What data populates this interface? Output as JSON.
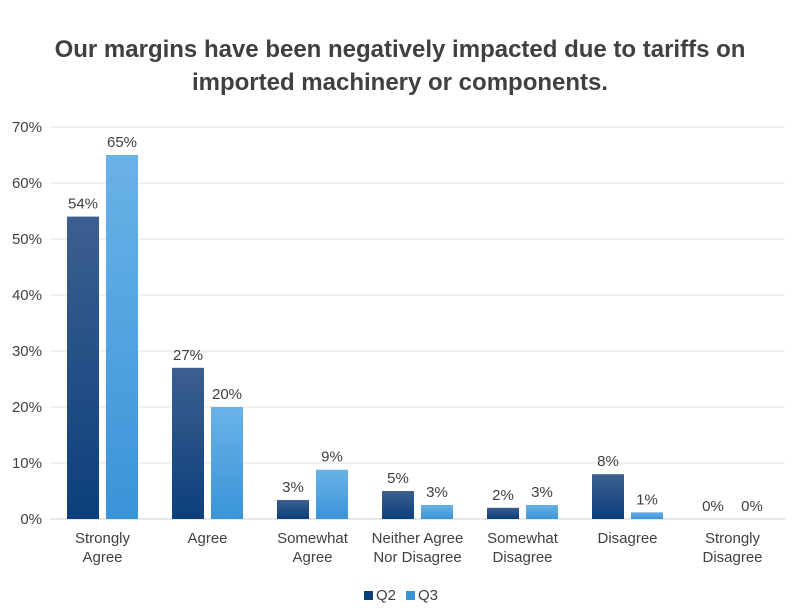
{
  "chart_data": {
    "type": "bar",
    "title_lines": [
      "Our margins have been negatively impacted due to tariffs on",
      "imported machinery or components."
    ],
    "categories": [
      [
        "Strongly",
        "Agree"
      ],
      [
        "Agree"
      ],
      [
        "Somewhat",
        "Agree"
      ],
      [
        "Neither Agree",
        "Nor Disagree"
      ],
      [
        "Somewhat",
        "Disagree"
      ],
      [
        "Disagree"
      ],
      [
        "Strongly",
        "Disagree"
      ]
    ],
    "series": [
      {
        "name": "Q2",
        "values": [
          54,
          27,
          3.4,
          5,
          2,
          8,
          0
        ],
        "labels": [
          "54%",
          "27%",
          "3%",
          "5%",
          "2%",
          "8%",
          "0%"
        ],
        "color_top": "#3d5f8f",
        "color_bottom": "#0b3f7c"
      },
      {
        "name": "Q3",
        "values": [
          65,
          20,
          8.8,
          2.5,
          2.5,
          1.2,
          0
        ],
        "labels": [
          "65%",
          "20%",
          "9%",
          "3%",
          "3%",
          "1%",
          "0%"
        ],
        "color_top": "#6ab2e8",
        "color_bottom": "#3a94d8"
      }
    ],
    "y_ticks": [
      0,
      10,
      20,
      30,
      40,
      50,
      60,
      70
    ],
    "y_tick_labels": [
      "0%",
      "10%",
      "20%",
      "30%",
      "40%",
      "50%",
      "60%",
      "70%"
    ],
    "ylim": [
      0,
      70
    ],
    "grid": true,
    "legend_position": "bottom-center",
    "xlabel": "",
    "ylabel": ""
  }
}
